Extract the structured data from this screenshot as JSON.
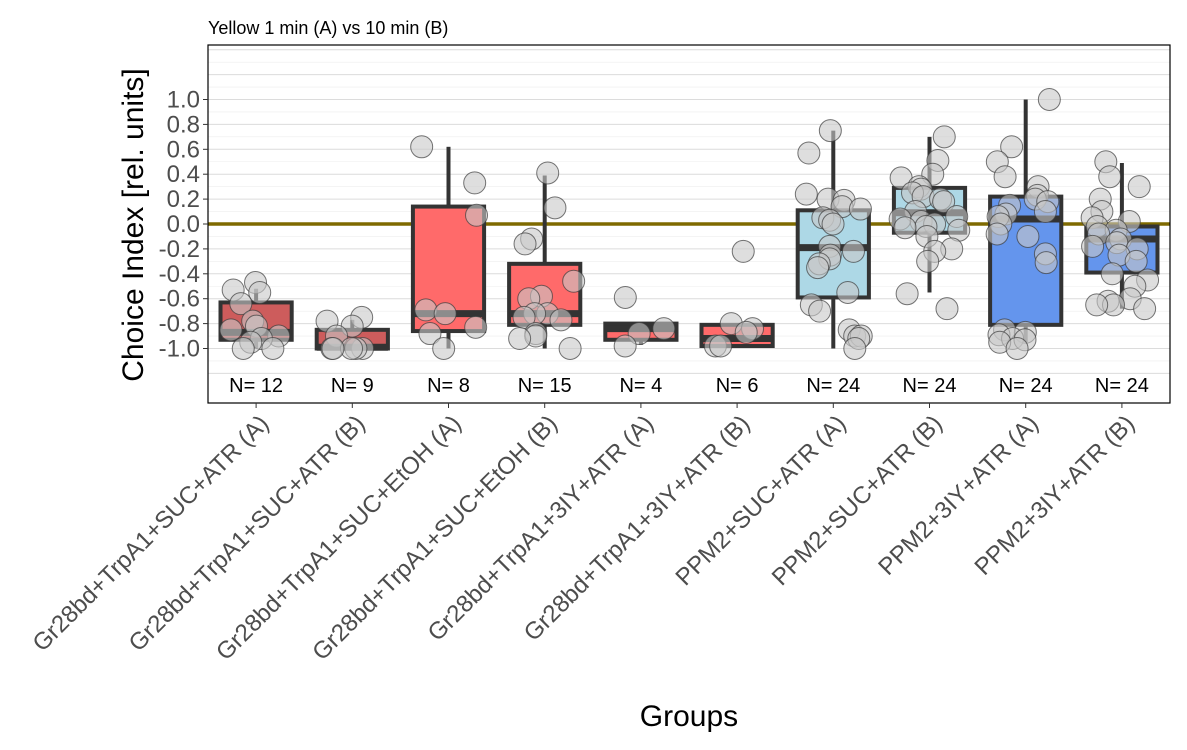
{
  "chart_data": {
    "type": "boxplot",
    "title": "Yellow 1 min (A) vs 10 min (B)",
    "xlabel": "Groups",
    "ylabel": "Choice Index [rel. units]",
    "ylim": [
      -1.3,
      1.45
    ],
    "yticks": [
      1.0,
      0.8,
      0.6,
      0.4,
      0.2,
      0.0,
      -0.2,
      -0.4,
      -0.6,
      -0.8,
      -1.0
    ],
    "ytick_labels": [
      "1.0",
      "0.8",
      "0.6",
      "0.4",
      "0.2",
      "0.0",
      "-0.2",
      "-0.4",
      "-0.6",
      "-0.8",
      "-1.0"
    ],
    "reference_line": {
      "y": 0.0,
      "color": "#7f6a00"
    },
    "grid": "horizontal",
    "categories": [
      "Gr28bd+TrpA1+SUC+ATR (A)",
      "Gr28bd+TrpA1+SUC+ATR (B)",
      "Gr28bd+TrpA1+SUC+EtOH (A)",
      "Gr28bd+TrpA1+SUC+EtOH (B)",
      "Gr28bd+TrpA1+3IY+ATR (A)",
      "Gr28bd+TrpA1+3IY+ATR (B)",
      "PPM2+SUC+ATR (A)",
      "PPM2+SUC+ATR (B)",
      "PPM2+3IY+ATR (A)",
      "PPM2+3IY+ATR (B)"
    ],
    "n_labels": [
      "N= 12",
      "N= 9",
      "N= 8",
      "N= 15",
      "N= 4",
      "N= 6",
      "N= 24",
      "N= 24",
      "N= 24",
      "N= 24"
    ],
    "boxes": [
      {
        "fill": "#cd5c5c",
        "whisker_low": -1.0,
        "q1": -0.93,
        "median": -0.87,
        "q3": -0.63,
        "whisker_high": -0.52
      },
      {
        "fill": "#cd5c5c",
        "whisker_low": -1.0,
        "q1": -1.0,
        "median": -0.99,
        "q3": -0.85,
        "whisker_high": -0.77
      },
      {
        "fill": "#ff6a6a",
        "whisker_low": -1.0,
        "q1": -0.86,
        "median": -0.72,
        "q3": 0.14,
        "whisker_high": 0.62
      },
      {
        "fill": "#ff6a6a",
        "whisker_low": -1.0,
        "q1": -0.81,
        "median": -0.72,
        "q3": -0.32,
        "whisker_high": 0.39
      },
      {
        "fill": "#ff6a6a",
        "whisker_low": -0.97,
        "q1": -0.93,
        "median": -0.84,
        "q3": -0.8,
        "whisker_high": -0.8
      },
      {
        "fill": "#ff6a6a",
        "whisker_low": -0.98,
        "q1": -0.98,
        "median": -0.92,
        "q3": -0.81,
        "whisker_high": -0.81
      },
      {
        "fill": "#add8e6",
        "whisker_low": -1.0,
        "q1": -0.59,
        "median": -0.19,
        "q3": 0.11,
        "whisker_high": 0.75
      },
      {
        "fill": "#add8e6",
        "whisker_low": -0.55,
        "q1": -0.07,
        "median": 0.09,
        "q3": 0.29,
        "whisker_high": 0.7
      },
      {
        "fill": "#6495ed",
        "whisker_low": -0.95,
        "q1": -0.81,
        "median": 0.04,
        "q3": 0.22,
        "whisker_high": 1.0
      },
      {
        "fill": "#6495ed",
        "whisker_low": -0.68,
        "q1": -0.39,
        "median": -0.12,
        "q3": -0.02,
        "whisker_high": 0.49
      }
    ],
    "points": [
      [
        -0.47,
        -0.55,
        -0.53,
        -0.64,
        -0.78,
        -0.82,
        -0.85,
        -0.9,
        -0.92,
        -0.95,
        -1.0,
        -1.0
      ],
      [
        -0.75,
        -0.78,
        -0.82,
        -0.9,
        -1.0,
        -1.0,
        -1.0,
        -1.0,
        -1.0
      ],
      [
        0.62,
        0.33,
        0.07,
        -0.69,
        -0.72,
        -0.83,
        -0.88,
        -1.0
      ],
      [
        0.41,
        0.13,
        -0.12,
        -0.16,
        -0.46,
        -0.58,
        -0.6,
        -0.72,
        -0.72,
        -0.75,
        -0.77,
        -0.88,
        -0.9,
        -0.92,
        -1.0
      ],
      [
        -0.59,
        -0.84,
        -0.88,
        -0.98
      ],
      [
        -0.22,
        -0.8,
        -0.84,
        -0.87,
        -0.98,
        -0.98
      ],
      [
        0.75,
        0.57,
        0.24,
        0.2,
        0.19,
        0.14,
        0.12,
        0.05,
        0.03,
        0.0,
        -0.18,
        -0.22,
        -0.25,
        -0.28,
        -0.32,
        -0.35,
        -0.55,
        -0.65,
        -0.7,
        -0.85,
        -0.9,
        -0.9,
        -0.92,
        -1.0
      ],
      [
        0.7,
        0.51,
        0.4,
        0.37,
        0.3,
        0.28,
        0.25,
        0.22,
        0.2,
        0.18,
        0.1,
        0.06,
        0.04,
        0.02,
        0.0,
        -0.02,
        -0.03,
        -0.05,
        -0.1,
        -0.2,
        -0.22,
        -0.3,
        -0.56,
        -0.68
      ],
      [
        1.0,
        0.62,
        0.5,
        0.38,
        0.3,
        0.23,
        0.2,
        0.18,
        0.15,
        0.1,
        0.08,
        0.06,
        0.0,
        -0.08,
        -0.1,
        -0.24,
        -0.31,
        -0.85,
        -0.87,
        -0.89,
        -0.92,
        -0.93,
        -0.95,
        -1.0
      ],
      [
        0.5,
        0.38,
        0.3,
        0.2,
        0.1,
        0.05,
        0.02,
        -0.02,
        -0.05,
        -0.08,
        -0.12,
        -0.15,
        -0.18,
        -0.2,
        -0.25,
        -0.3,
        -0.4,
        -0.45,
        -0.5,
        -0.6,
        -0.62,
        -0.65,
        -0.65,
        -0.68
      ]
    ]
  }
}
